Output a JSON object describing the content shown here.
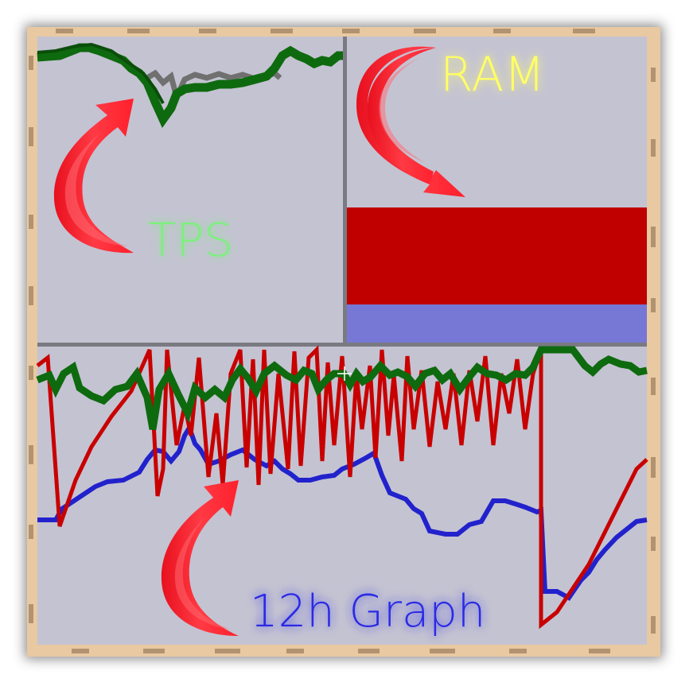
{
  "labels": {
    "tps": "TPS",
    "ram": "RAM",
    "graph": "12h Graph"
  },
  "colors": {
    "frame_wood": "#e8c9a1",
    "frame_dark": "#a38665",
    "panel_bg": "#c4c3d2",
    "divider": "#7a7a82",
    "tps_line": "#0e6a0e",
    "tps_gray": "#707070",
    "ram_used": "#c00000",
    "ram_free": "#7777d6",
    "graph_red": "#c80000",
    "graph_green": "#0e6a0e",
    "graph_blue": "#2222cc",
    "arrow": "#ff2a35",
    "tps_label": "#7cf07c",
    "ram_label": "#ffff66",
    "graph_label": "#2a2ae6"
  },
  "ram_bar": {
    "used_fraction": 0.72
  }
}
